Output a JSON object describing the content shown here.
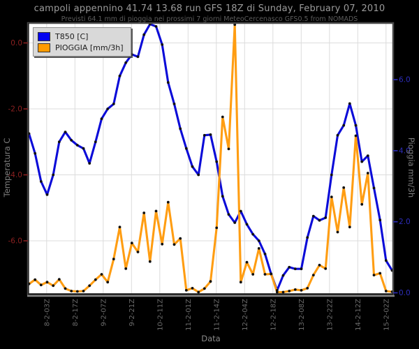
{
  "header": {
    "title": "campoli appennino 41.74 13.68 run GFS 18Z di Sunday, February 07, 2010",
    "subtitle": "Previsti 64.1 mm di pioggia nei prossimi 7 giorni MeteoCercenasco GFS0.5 from NOMADS"
  },
  "legend": [
    {
      "label": "T850 [C]",
      "color": "#0202f0"
    },
    {
      "label": "PIOGGIA [mm/3h]",
      "color": "#ff9b00"
    }
  ],
  "colors": {
    "background": "#000000",
    "plot_background": "#ffffff",
    "frame": "#4a4a4a",
    "grid": "#dcdcdc",
    "temp_line": "#0b0bd8",
    "rain_line": "#ff9d12",
    "marker": "#111111",
    "left_axis_text": "#8b2020",
    "right_axis_text": "#2d2dbb",
    "x_axis_text": "#6b6b6b",
    "axis_title_text": "#7d7d7d"
  },
  "chart_data": {
    "type": "line",
    "title": "campoli appennino 41.74 13.68 run GFS 18Z di Sunday, February 07, 2010",
    "subtitle": "Previsti 64.1 mm di pioggia nei prossimi 7 giorni MeteoCercenasco GFS0.5 from NOMADS",
    "xlabel": "Data",
    "ylabel_left": "Temperatura C",
    "ylabel_right": "Pioggia mm/3h",
    "grid": true,
    "legend_position": "top-left",
    "x_tick_labels": [
      "8-2-03Z",
      "8-2-17Z",
      "9-2-07Z",
      "9-2-21Z",
      "10-2-11Z",
      "11-2-01Z",
      "11-2-14Z",
      "12-2-04Z",
      "12-2-18Z",
      "13-2-08Z",
      "13-2-22Z",
      "14-2-12Z",
      "15-2-02Z"
    ],
    "yticks_left": [
      0,
      -2,
      -4,
      -6
    ],
    "ytick_labels_left": [
      "0.0",
      "-2.0",
      "-4.0",
      "-6.0"
    ],
    "ylim_left": [
      -7.7,
      0.6
    ],
    "yticks_right": [
      6,
      4,
      2,
      0
    ],
    "ytick_labels_right": [
      "6.0",
      "4.0",
      "2.0",
      "0.0"
    ],
    "ylim_right": [
      0,
      7.9
    ],
    "series": [
      {
        "name": "T850 [C]",
        "axis": "left",
        "unit": "C",
        "values": [
          -2.75,
          -3.35,
          -4.2,
          -4.6,
          -4.0,
          -3.0,
          -2.7,
          -2.95,
          -3.1,
          -3.2,
          -3.65,
          -3.0,
          -2.3,
          -2.0,
          -1.85,
          -1.0,
          -0.6,
          -0.35,
          -0.42,
          0.25,
          0.57,
          0.5,
          -0.05,
          -1.2,
          -1.85,
          -2.6,
          -3.2,
          -3.75,
          -4.0,
          -2.8,
          -2.78,
          -3.6,
          -4.65,
          -5.2,
          -5.45,
          -5.1,
          -5.5,
          -5.8,
          -6.0,
          -6.4,
          -7.0,
          -7.5,
          -7.05,
          -6.8,
          -6.85,
          -6.85,
          -5.9,
          -5.25,
          -5.38,
          -5.3,
          -4.0,
          -2.8,
          -2.5,
          -1.84,
          -2.5,
          -3.6,
          -3.42,
          -4.4,
          -5.37,
          -6.6,
          -6.9
        ]
      },
      {
        "name": "PIOGGIA [mm/3h]",
        "axis": "right",
        "unit": "mm/3h",
        "values": [
          0.25,
          0.37,
          0.22,
          0.3,
          0.2,
          0.38,
          0.12,
          0.05,
          0.04,
          0.05,
          0.2,
          0.37,
          0.52,
          0.3,
          0.95,
          1.85,
          0.68,
          1.4,
          1.15,
          2.25,
          0.88,
          2.3,
          1.37,
          2.55,
          1.36,
          1.53,
          0.07,
          0.13,
          0.02,
          0.12,
          0.32,
          1.83,
          4.95,
          4.05,
          7.55,
          0.3,
          0.86,
          0.52,
          1.25,
          0.52,
          0.53,
          0.02,
          0.02,
          0.05,
          0.09,
          0.07,
          0.13,
          0.5,
          0.78,
          0.68,
          2.7,
          1.71,
          2.96,
          1.85,
          4.42,
          2.49,
          3.37,
          0.5,
          0.55,
          0.05,
          0.03
        ]
      }
    ]
  }
}
